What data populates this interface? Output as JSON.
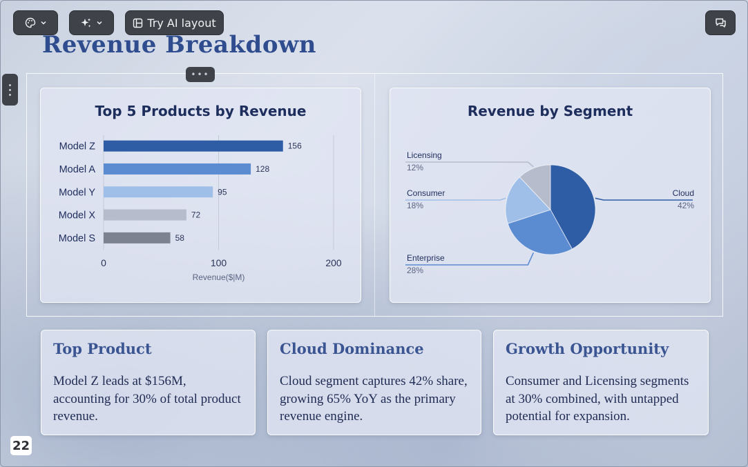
{
  "toolbar": {
    "ai_layout_label": "Try AI layout"
  },
  "slide": {
    "title": "Revenue Breakdown",
    "page_number": "22"
  },
  "chart_data": [
    {
      "type": "bar",
      "orientation": "horizontal",
      "title": "Top 5 Products by Revenue",
      "xlabel": "Revenue($|M)",
      "ylabel": "",
      "categories": [
        "Model Z",
        "Model A",
        "Model Y",
        "Model X",
        "Model S"
      ],
      "values": [
        156,
        128,
        95,
        72,
        58
      ],
      "data_labels": [
        "156",
        "128",
        "95",
        "72",
        "58"
      ],
      "xlim": [
        0,
        200
      ],
      "xticks": [
        "0",
        "100",
        "200"
      ],
      "colors": [
        "#2e5da6",
        "#5b8bd0",
        "#9fbfe8",
        "#b6bccb",
        "#7d8290"
      ],
      "grid": true
    },
    {
      "type": "pie",
      "title": "Revenue by Segment",
      "categories": [
        "Cloud",
        "Enterprise",
        "Consumer",
        "Licensing"
      ],
      "values": [
        42,
        28,
        18,
        12
      ],
      "percent_labels": [
        "42%",
        "28%",
        "18%",
        "12%"
      ],
      "colors": [
        "#2e5da6",
        "#5b8bd0",
        "#9fbfe8",
        "#b6bccb"
      ]
    }
  ],
  "cards": [
    {
      "title": "Top Product",
      "body": "Model Z leads at $156M, accounting for 30% of total product revenue."
    },
    {
      "title": "Cloud Dominance",
      "body": "Cloud segment captures 42% share, growing 65% YoY as the primary revenue engine."
    },
    {
      "title": "Growth Opportunity",
      "body": "Consumer and Licensing segments at 30% combined, with untapped potential for expansion."
    }
  ],
  "icons": {
    "theme": "palette-icon",
    "magic": "sparkles-icon",
    "ai_layout": "layout-icon",
    "comment": "comment-icon"
  }
}
